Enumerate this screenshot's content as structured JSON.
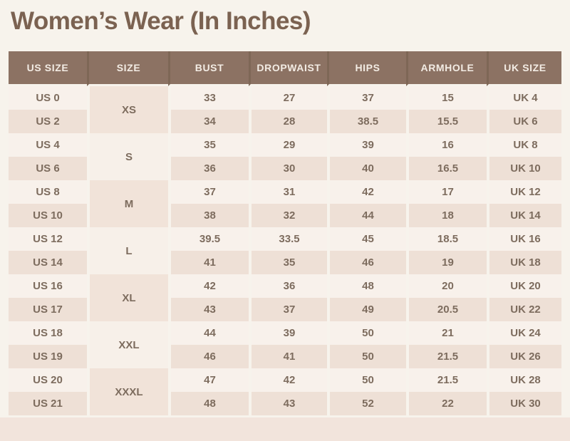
{
  "page": {
    "title": "Women’s Wear (In Inches)"
  },
  "colors": {
    "page_background": "#f7f3ec",
    "title_text": "#7b6251",
    "header_background": "#8c7263",
    "header_divider": "#7e6756",
    "header_text": "#f3ece4",
    "row_light": "#f8f1eb",
    "row_dark": "#eee0d6",
    "size_group_dark": "#f1e3d9",
    "size_group_light": "#f7f0e9",
    "cell_text": "#7d6c5e",
    "bottom_strip": "#f2e4dc"
  },
  "table": {
    "columns": [
      "US SIZE",
      "SIZE",
      "BUST",
      "DROPWAIST",
      "HIPS",
      "ARMHOLE",
      "UK SIZE"
    ],
    "groups": [
      {
        "size": "XS",
        "rows": [
          {
            "us": "US 0",
            "bust": "33",
            "dropwaist": "27",
            "hips": "37",
            "armhole": "15",
            "uk": "UK 4"
          },
          {
            "us": "US 2",
            "bust": "34",
            "dropwaist": "28",
            "hips": "38.5",
            "armhole": "15.5",
            "uk": "UK 6"
          }
        ]
      },
      {
        "size": "S",
        "rows": [
          {
            "us": "US 4",
            "bust": "35",
            "dropwaist": "29",
            "hips": "39",
            "armhole": "16",
            "uk": "UK 8"
          },
          {
            "us": "US 6",
            "bust": "36",
            "dropwaist": "30",
            "hips": "40",
            "armhole": "16.5",
            "uk": "UK 10"
          }
        ]
      },
      {
        "size": "M",
        "rows": [
          {
            "us": "US 8",
            "bust": "37",
            "dropwaist": "31",
            "hips": "42",
            "armhole": "17",
            "uk": "UK 12"
          },
          {
            "us": "US 10",
            "bust": "38",
            "dropwaist": "32",
            "hips": "44",
            "armhole": "18",
            "uk": "UK 14"
          }
        ]
      },
      {
        "size": "L",
        "rows": [
          {
            "us": "US 12",
            "bust": "39.5",
            "dropwaist": "33.5",
            "hips": "45",
            "armhole": "18.5",
            "uk": "UK 16"
          },
          {
            "us": "US 14",
            "bust": "41",
            "dropwaist": "35",
            "hips": "46",
            "armhole": "19",
            "uk": "UK 18"
          }
        ]
      },
      {
        "size": "XL",
        "rows": [
          {
            "us": "US 16",
            "bust": "42",
            "dropwaist": "36",
            "hips": "48",
            "armhole": "20",
            "uk": "UK 20"
          },
          {
            "us": "US 17",
            "bust": "43",
            "dropwaist": "37",
            "hips": "49",
            "armhole": "20.5",
            "uk": "UK 22"
          }
        ]
      },
      {
        "size": "XXL",
        "rows": [
          {
            "us": "US 18",
            "bust": "44",
            "dropwaist": "39",
            "hips": "50",
            "armhole": "21",
            "uk": "UK 24"
          },
          {
            "us": "US 19",
            "bust": "46",
            "dropwaist": "41",
            "hips": "50",
            "armhole": "21.5",
            "uk": "UK 26"
          }
        ]
      },
      {
        "size": "XXXL",
        "rows": [
          {
            "us": "US 20",
            "bust": "47",
            "dropwaist": "42",
            "hips": "50",
            "armhole": "21.5",
            "uk": "UK 28"
          },
          {
            "us": "US 21",
            "bust": "48",
            "dropwaist": "43",
            "hips": "52",
            "armhole": "22",
            "uk": "UK 30"
          }
        ]
      }
    ]
  },
  "chart_data": {
    "type": "table",
    "title": "Women’s Wear (In Inches)",
    "columns": [
      "US SIZE",
      "SIZE",
      "BUST",
      "DROPWAIST",
      "HIPS",
      "ARMHOLE",
      "UK SIZE"
    ],
    "rows": [
      [
        "US 0",
        "XS",
        "33",
        "27",
        "37",
        "15",
        "UK 4"
      ],
      [
        "US 2",
        "XS",
        "34",
        "28",
        "38.5",
        "15.5",
        "UK 6"
      ],
      [
        "US 4",
        "S",
        "35",
        "29",
        "39",
        "16",
        "UK 8"
      ],
      [
        "US 6",
        "S",
        "36",
        "30",
        "40",
        "16.5",
        "UK 10"
      ],
      [
        "US 8",
        "M",
        "37",
        "31",
        "42",
        "17",
        "UK 12"
      ],
      [
        "US 10",
        "M",
        "38",
        "32",
        "44",
        "18",
        "UK 14"
      ],
      [
        "US 12",
        "L",
        "39.5",
        "33.5",
        "45",
        "18.5",
        "UK 16"
      ],
      [
        "US 14",
        "L",
        "41",
        "35",
        "46",
        "19",
        "UK 18"
      ],
      [
        "US 16",
        "XL",
        "42",
        "36",
        "48",
        "20",
        "UK 20"
      ],
      [
        "US 17",
        "XL",
        "43",
        "37",
        "49",
        "20.5",
        "UK 22"
      ],
      [
        "US 18",
        "XXL",
        "44",
        "39",
        "50",
        "21",
        "UK 24"
      ],
      [
        "US 19",
        "XXL",
        "46",
        "41",
        "50",
        "21.5",
        "UK 26"
      ],
      [
        "US 20",
        "XXXL",
        "47",
        "42",
        "50",
        "21.5",
        "UK 28"
      ],
      [
        "US 21",
        "XXXL",
        "48",
        "43",
        "52",
        "22",
        "UK 30"
      ]
    ],
    "notes": "Size column cells are merged across each pair of rows (XS, S, M, L, XL, XXL, XXXL). Units are inches."
  }
}
